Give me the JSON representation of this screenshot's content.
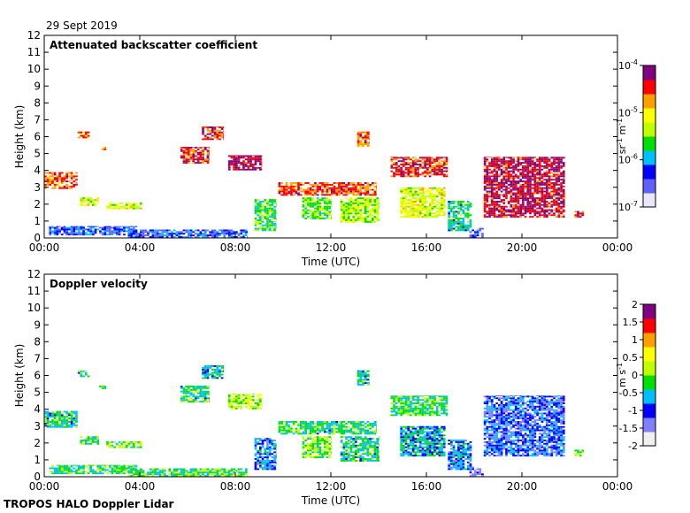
{
  "date_label": "29 Sept 2019",
  "footer": "TROPOS HALO Doppler Lidar",
  "chart_data": [
    {
      "type": "heatmap",
      "title": "Attenuated backscatter coefficient",
      "xlabel": "Time (UTC)",
      "ylabel": "Height (km)",
      "x_ticks": [
        "00:00",
        "04:00",
        "08:00",
        "12:00",
        "16:00",
        "20:00",
        "00:00"
      ],
      "x_tick_hours": [
        0,
        4,
        8,
        12,
        16,
        20,
        24
      ],
      "xlim_hours": [
        0,
        24
      ],
      "y_ticks": [
        0,
        1,
        2,
        3,
        4,
        5,
        6,
        7,
        8,
        9,
        10,
        11,
        12
      ],
      "ylim": [
        0,
        12
      ],
      "colorbar": {
        "scale": "log",
        "range": [
          1e-07,
          0.0001
        ],
        "tick_values": [
          0.0001,
          1e-05,
          1e-06,
          1e-07
        ],
        "tick_bases": [
          "10",
          "10",
          "10",
          "10"
        ],
        "tick_exponents": [
          "-4",
          "-5",
          "-6",
          "-7"
        ],
        "unit_parts": [
          "sr",
          "-1",
          " m",
          "-1"
        ],
        "colors": [
          "#e8e8f8",
          "#6060ff",
          "#0000ff",
          "#00bfff",
          "#00e000",
          "#c0ff00",
          "#ffff00",
          "#ffa000",
          "#ff0000",
          "#800080"
        ]
      },
      "features": [
        {
          "t0": 0.2,
          "t1": 3.9,
          "h0": 0.15,
          "h1": 0.7,
          "v": 0.25
        },
        {
          "t0": 3.5,
          "t1": 8.5,
          "h0": 0.0,
          "h1": 0.5,
          "v": 0.24
        },
        {
          "t0": 0.0,
          "t1": 1.4,
          "h0": 2.9,
          "h1": 3.9,
          "v": 0.8
        },
        {
          "t0": 1.5,
          "t1": 2.3,
          "h0": 1.9,
          "h1": 2.4,
          "v": 0.6
        },
        {
          "t0": 2.6,
          "t1": 4.1,
          "h0": 1.7,
          "h1": 2.1,
          "v": 0.6
        },
        {
          "t0": 1.4,
          "t1": 1.9,
          "h0": 5.9,
          "h1": 6.3,
          "v": 0.8
        },
        {
          "t0": 2.3,
          "t1": 2.6,
          "h0": 5.2,
          "h1": 5.4,
          "v": 0.8
        },
        {
          "t0": 5.7,
          "t1": 6.9,
          "h0": 4.4,
          "h1": 5.4,
          "v": 0.85
        },
        {
          "t0": 6.6,
          "t1": 7.5,
          "h0": 5.8,
          "h1": 6.6,
          "v": 0.85
        },
        {
          "t0": 7.7,
          "t1": 9.1,
          "h0": 4.0,
          "h1": 4.9,
          "v": 0.92
        },
        {
          "t0": 8.8,
          "t1": 9.7,
          "h0": 0.4,
          "h1": 2.3,
          "v": 0.45
        },
        {
          "t0": 9.8,
          "t1": 13.9,
          "h0": 2.5,
          "h1": 3.3,
          "v": 0.82
        },
        {
          "t0": 10.8,
          "t1": 12.0,
          "h0": 1.1,
          "h1": 2.4,
          "v": 0.5
        },
        {
          "t0": 12.4,
          "t1": 14.0,
          "h0": 0.9,
          "h1": 2.4,
          "v": 0.55
        },
        {
          "t0": 13.1,
          "t1": 13.6,
          "h0": 5.4,
          "h1": 6.3,
          "v": 0.8
        },
        {
          "t0": 14.5,
          "t1": 16.9,
          "h0": 3.6,
          "h1": 4.8,
          "v": 0.85
        },
        {
          "t0": 14.9,
          "t1": 16.8,
          "h0": 1.2,
          "h1": 3.0,
          "v": 0.6
        },
        {
          "t0": 16.9,
          "t1": 17.9,
          "h0": 0.4,
          "h1": 2.2,
          "v": 0.4
        },
        {
          "t0": 17.8,
          "t1": 18.4,
          "h0": 0.0,
          "h1": 0.6,
          "v": 0.18
        },
        {
          "t0": 18.4,
          "t1": 21.8,
          "h0": 1.2,
          "h1": 4.8,
          "v": 0.9
        },
        {
          "t0": 22.2,
          "t1": 22.6,
          "h0": 1.2,
          "h1": 1.6,
          "v": 0.85
        }
      ]
    },
    {
      "type": "heatmap",
      "title": "Doppler velocity",
      "xlabel": "Time (UTC)",
      "ylabel": "Height (km)",
      "x_ticks": [
        "00:00",
        "04:00",
        "08:00",
        "12:00",
        "16:00",
        "20:00",
        "00:00"
      ],
      "x_tick_hours": [
        0,
        4,
        8,
        12,
        16,
        20,
        24
      ],
      "xlim_hours": [
        0,
        24
      ],
      "y_ticks": [
        0,
        1,
        2,
        3,
        4,
        5,
        6,
        7,
        8,
        9,
        10,
        11,
        12
      ],
      "ylim": [
        0,
        12
      ],
      "colorbar": {
        "scale": "linear",
        "range": [
          -2,
          2
        ],
        "tick_values": [
          2,
          1.5,
          1,
          0.5,
          0,
          -0.5,
          -1,
          -1.5,
          -2
        ],
        "tick_labels": [
          "2",
          "1.5",
          "1",
          "0.5",
          "0",
          "-0.5",
          "-1",
          "-1.5",
          "-2"
        ],
        "unit_parts": [
          "m s",
          "-1"
        ],
        "colors": [
          "#f0f0f0",
          "#8080ff",
          "#0000ff",
          "#00bfff",
          "#00e000",
          "#c0ff00",
          "#ffff00",
          "#ffa000",
          "#ff0000",
          "#800080"
        ]
      },
      "features": [
        {
          "t0": 0.2,
          "t1": 3.9,
          "h0": 0.15,
          "h1": 0.7,
          "v": 0.45
        },
        {
          "t0": 3.5,
          "t1": 8.5,
          "h0": 0.0,
          "h1": 0.5,
          "v": 0.45
        },
        {
          "t0": 0.0,
          "t1": 1.4,
          "h0": 2.9,
          "h1": 3.9,
          "v": 0.4
        },
        {
          "t0": 1.5,
          "t1": 2.3,
          "h0": 1.9,
          "h1": 2.4,
          "v": 0.45
        },
        {
          "t0": 2.6,
          "t1": 4.1,
          "h0": 1.7,
          "h1": 2.1,
          "v": 0.5
        },
        {
          "t0": 1.4,
          "t1": 1.9,
          "h0": 5.9,
          "h1": 6.3,
          "v": 0.4
        },
        {
          "t0": 2.3,
          "t1": 2.6,
          "h0": 5.2,
          "h1": 5.4,
          "v": 0.45
        },
        {
          "t0": 5.7,
          "t1": 6.9,
          "h0": 4.4,
          "h1": 5.4,
          "v": 0.42
        },
        {
          "t0": 6.6,
          "t1": 7.5,
          "h0": 5.8,
          "h1": 6.6,
          "v": 0.38
        },
        {
          "t0": 7.7,
          "t1": 9.1,
          "h0": 4.0,
          "h1": 4.9,
          "v": 0.55
        },
        {
          "t0": 8.8,
          "t1": 9.7,
          "h0": 0.4,
          "h1": 2.3,
          "v": 0.3
        },
        {
          "t0": 9.8,
          "t1": 13.9,
          "h0": 2.5,
          "h1": 3.3,
          "v": 0.42
        },
        {
          "t0": 10.8,
          "t1": 12.0,
          "h0": 1.1,
          "h1": 2.4,
          "v": 0.5
        },
        {
          "t0": 12.4,
          "t1": 14.0,
          "h0": 0.9,
          "h1": 2.4,
          "v": 0.4
        },
        {
          "t0": 13.1,
          "t1": 13.6,
          "h0": 5.4,
          "h1": 6.3,
          "v": 0.4
        },
        {
          "t0": 14.5,
          "t1": 16.9,
          "h0": 3.6,
          "h1": 4.8,
          "v": 0.45
        },
        {
          "t0": 14.9,
          "t1": 16.8,
          "h0": 1.2,
          "h1": 3.0,
          "v": 0.35
        },
        {
          "t0": 16.9,
          "t1": 17.9,
          "h0": 0.4,
          "h1": 2.2,
          "v": 0.3
        },
        {
          "t0": 17.8,
          "t1": 18.4,
          "h0": 0.0,
          "h1": 0.6,
          "v": 0.15
        },
        {
          "t0": 18.4,
          "t1": 21.8,
          "h0": 1.2,
          "h1": 4.8,
          "v": 0.25
        },
        {
          "t0": 22.2,
          "t1": 22.6,
          "h0": 1.2,
          "h1": 1.6,
          "v": 0.5
        }
      ]
    }
  ]
}
